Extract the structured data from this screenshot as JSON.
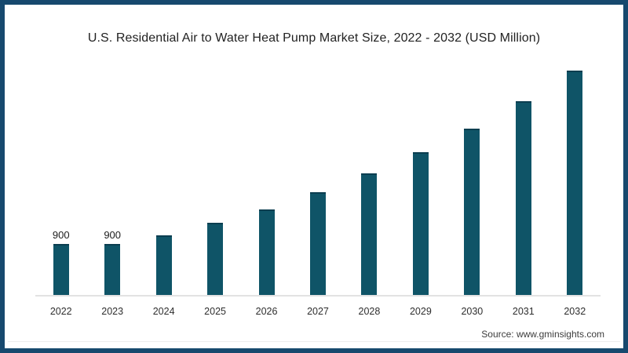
{
  "frame": {
    "border_color": "#17496e",
    "background_color": "#ffffff"
  },
  "title": "U.S. Residential Air to Water Heat Pump Market Size, 2022 - 2032 (USD Million)",
  "source_note": "Source: www.gminsights.com",
  "chart_data": {
    "type": "bar",
    "title": "U.S. Residential Air to Water Heat Pump Market Size, 2022 - 2032 (USD Million)",
    "categories": [
      "2022",
      "2023",
      "2024",
      "2025",
      "2026",
      "2027",
      "2028",
      "2029",
      "2030",
      "2031",
      "2032"
    ],
    "values": [
      900,
      900,
      1050,
      1270,
      1510,
      1810,
      2150,
      2520,
      2940,
      3420,
      3960
    ],
    "data_labels": [
      "900",
      "900",
      "",
      "",
      "",
      "",
      "",
      "",
      "",
      "",
      ""
    ],
    "xlabel": "",
    "ylabel": "",
    "ylim": [
      0,
      4000
    ],
    "grid": false,
    "legend": false,
    "bar_color": "#0f5467",
    "bar_top_edge_color": "#0b3e50",
    "axis_line_color": "#e2e2e2",
    "label_color": "#1c1c1c"
  }
}
